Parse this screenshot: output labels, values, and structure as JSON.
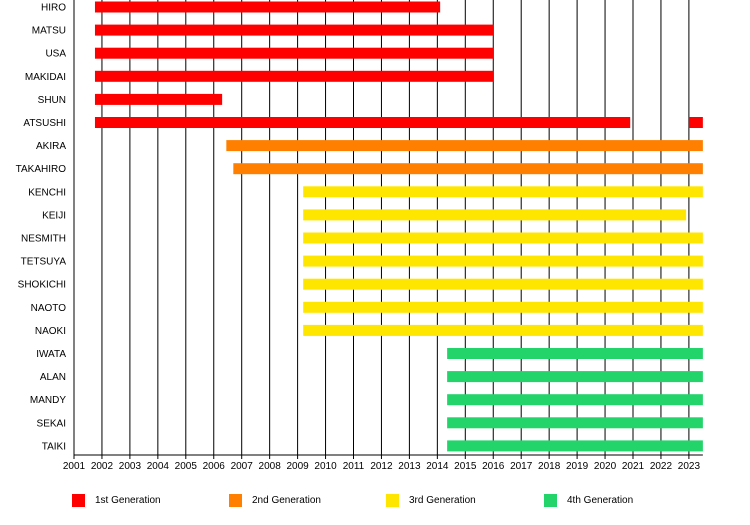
{
  "chart_data": {
    "type": "bar",
    "orientation": "horizontal-timeline",
    "xlim": [
      2001,
      2023.5
    ],
    "x_ticks": [
      "2001",
      "2002",
      "2003",
      "2004",
      "2005",
      "2006",
      "2007",
      "2008",
      "2009",
      "2010",
      "2011",
      "2012",
      "2013",
      "2014",
      "2015",
      "2016",
      "2017",
      "2018",
      "2019",
      "2020",
      "2021",
      "2022",
      "2023"
    ],
    "grid": "vertical",
    "legend_position": "bottom",
    "series": [
      {
        "name": "1st Generation",
        "color": "#ff0000"
      },
      {
        "name": "2nd Generation",
        "color": "#ff8000"
      },
      {
        "name": "3rd Generation",
        "color": "#ffe600"
      },
      {
        "name": "4th Generation",
        "color": "#22d46a"
      }
    ],
    "members": [
      {
        "name": "HIRO",
        "series": 0,
        "periods": [
          [
            2001.75,
            2014.1
          ]
        ]
      },
      {
        "name": "MATSU",
        "series": 0,
        "periods": [
          [
            2001.75,
            2016.0
          ]
        ]
      },
      {
        "name": "USA",
        "series": 0,
        "periods": [
          [
            2001.75,
            2016.0
          ]
        ]
      },
      {
        "name": "MAKIDAI",
        "series": 0,
        "periods": [
          [
            2001.75,
            2016.0
          ]
        ]
      },
      {
        "name": "SHUN",
        "series": 0,
        "periods": [
          [
            2001.75,
            2006.3
          ]
        ]
      },
      {
        "name": "ATSUSHI",
        "series": 0,
        "periods": [
          [
            2001.75,
            2020.9
          ],
          [
            2023.0,
            2023.5
          ]
        ]
      },
      {
        "name": "AKIRA",
        "series": 1,
        "periods": [
          [
            2006.45,
            2023.5
          ]
        ]
      },
      {
        "name": "TAKAHIRO",
        "series": 1,
        "periods": [
          [
            2006.7,
            2023.5
          ]
        ]
      },
      {
        "name": "KENCHI",
        "series": 2,
        "periods": [
          [
            2009.2,
            2023.5
          ]
        ]
      },
      {
        "name": "KEIJI",
        "series": 2,
        "periods": [
          [
            2009.2,
            2022.9
          ]
        ]
      },
      {
        "name": "NESMITH",
        "series": 2,
        "periods": [
          [
            2009.2,
            2023.5
          ]
        ]
      },
      {
        "name": "TETSUYA",
        "series": 2,
        "periods": [
          [
            2009.2,
            2023.5
          ]
        ]
      },
      {
        "name": "SHOKICHI",
        "series": 2,
        "periods": [
          [
            2009.2,
            2023.5
          ]
        ]
      },
      {
        "name": "NAOTO",
        "series": 2,
        "periods": [
          [
            2009.2,
            2023.5
          ]
        ]
      },
      {
        "name": "NAOKI",
        "series": 2,
        "periods": [
          [
            2009.2,
            2023.5
          ]
        ]
      },
      {
        "name": "IWATA",
        "series": 3,
        "periods": [
          [
            2014.35,
            2023.5
          ]
        ]
      },
      {
        "name": "ALAN",
        "series": 3,
        "periods": [
          [
            2014.35,
            2023.5
          ]
        ]
      },
      {
        "name": "MANDY",
        "series": 3,
        "periods": [
          [
            2014.35,
            2023.5
          ]
        ]
      },
      {
        "name": "SEKAI",
        "series": 3,
        "periods": [
          [
            2014.35,
            2023.5
          ]
        ]
      },
      {
        "name": "TAIKI",
        "series": 3,
        "periods": [
          [
            2014.35,
            2023.5
          ]
        ]
      }
    ]
  }
}
